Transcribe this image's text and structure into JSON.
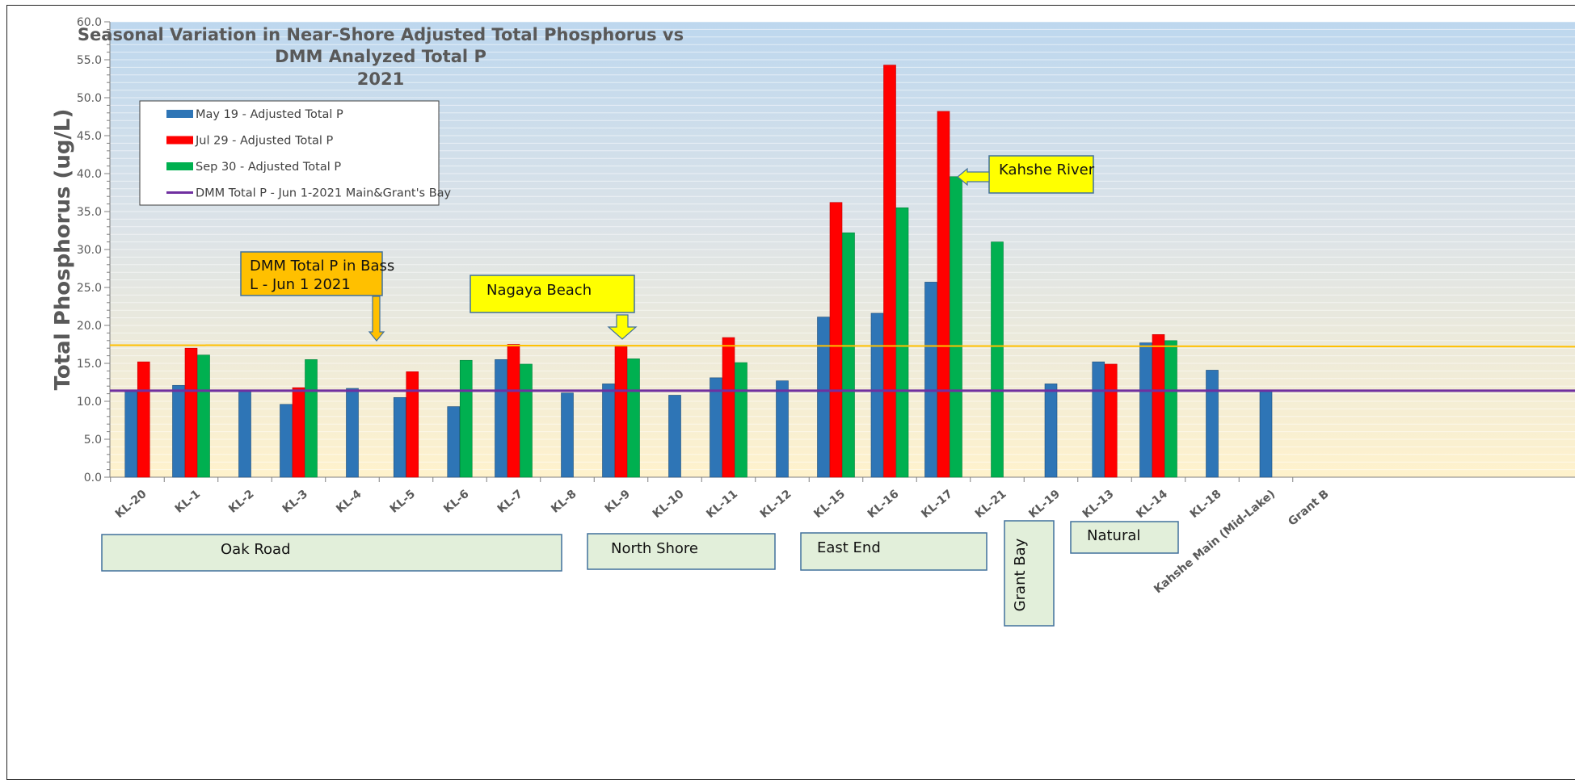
{
  "chart_data": {
    "type": "bar",
    "title_lines": [
      "Seasonal Variation in Near-Shore Adjusted Total Phosphorus vs",
      "DMM Analyzed Total P",
      "2021"
    ],
    "ylabel": "Total Phosphorus   (ug/L)",
    "ylim": [
      0,
      60
    ],
    "yticks": [
      "0.0",
      "5.0",
      "10.0",
      "15.0",
      "20.0",
      "25.0",
      "30.0",
      "35.0",
      "40.0",
      "45.0",
      "50.0",
      "55.0",
      "60.0"
    ],
    "categories": [
      "KL-20",
      "KL-1",
      "KL-2",
      "KL-3",
      "KL-4",
      "KL-5",
      "KL-6",
      "KL-7",
      "KL-8",
      "KL-9",
      "KL-10",
      "KL-11",
      "KL-12",
      "KL-15",
      "KL-16",
      "KL-17",
      "KL-21",
      "KL-19",
      "KL-13",
      "KL-14",
      "KL-18",
      "Kahshe Main (Mid-Lake)",
      "Grant B"
    ],
    "series": [
      {
        "name": "May 19 - Adjusted Total P",
        "color": "#2E75B6",
        "values": [
          11.3,
          12.1,
          11.4,
          9.6,
          11.7,
          10.5,
          9.3,
          15.5,
          11.1,
          12.3,
          10.8,
          13.1,
          12.7,
          21.1,
          21.6,
          25.7,
          null,
          12.3,
          15.2,
          17.7,
          14.1,
          11.4,
          null
        ]
      },
      {
        "name": "Jul 29 - Adjusted Total P",
        "color": "#FF0000",
        "values": [
          15.2,
          17.0,
          null,
          11.8,
          null,
          13.9,
          null,
          17.5,
          null,
          17.2,
          null,
          18.4,
          null,
          36.2,
          54.3,
          48.2,
          null,
          null,
          14.9,
          18.8,
          null,
          null,
          null
        ]
      },
      {
        "name": "Sep 30 - Adjusted Total P",
        "color": "#00B050",
        "values": [
          null,
          16.1,
          null,
          15.5,
          null,
          null,
          15.4,
          14.9,
          null,
          15.6,
          null,
          15.1,
          null,
          32.2,
          35.5,
          39.6,
          31.0,
          null,
          null,
          18.0,
          null,
          null,
          null
        ]
      }
    ],
    "lines": [
      {
        "name": "DMM Total P - Jun 1-2021 Main&Grant's Bay",
        "color": "#7030A0",
        "value": 11.4
      },
      {
        "name": "DMM Total P in Bass L - Jun 1 2021",
        "color": "#FFC000",
        "value_start": 17.4,
        "value_end": 17.2
      }
    ],
    "legend_placement": "top-left",
    "grid": true,
    "annotations": {
      "bass": {
        "text_lines": [
          "DMM Total P in Bass",
          "L - Jun 1  2021"
        ],
        "color": "#FFC000"
      },
      "nagaya": {
        "text": "Nagaya Beach",
        "color": "#FFFF00"
      },
      "kahshe": {
        "text": "Kahshe River",
        "color": "#FFFF00"
      }
    },
    "groups": [
      "Oak Road",
      "North Shore",
      "East End",
      "Grant Bay",
      "Natural"
    ]
  }
}
